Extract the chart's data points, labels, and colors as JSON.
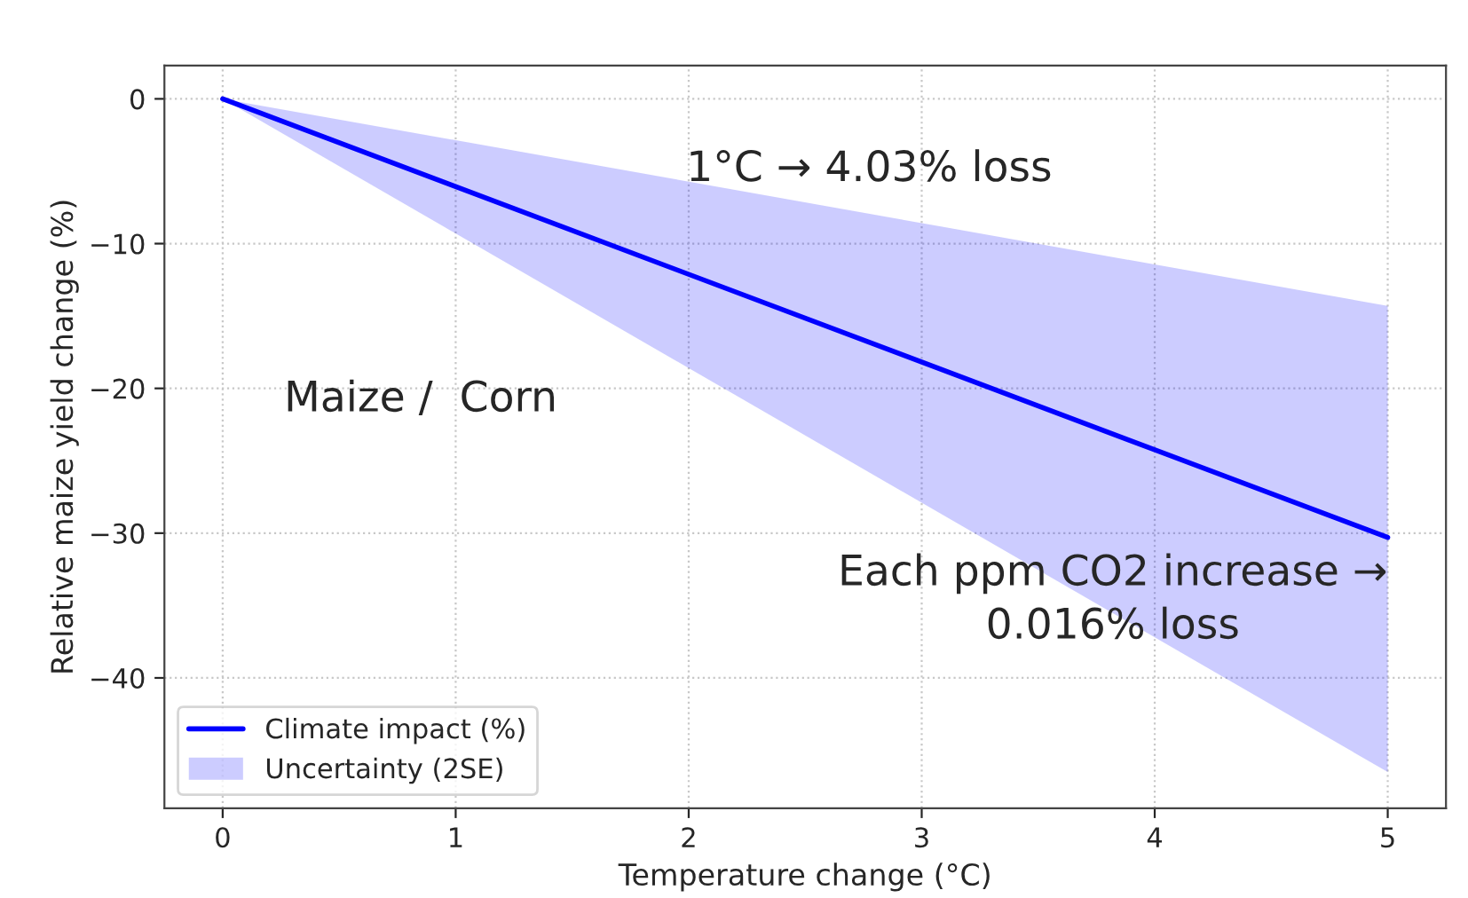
{
  "chart_data": {
    "type": "line",
    "xlabel": "Temperature change (°C)",
    "ylabel": "Relative maize yield change (%)",
    "x": [
      0,
      5
    ],
    "series": [
      {
        "name": "Climate impact (%)",
        "color": "#0000ff",
        "values": [
          0,
          -30.3
        ],
        "lower": [
          0,
          -46.5
        ],
        "upper": [
          0,
          -14.3
        ]
      }
    ],
    "xlim": [
      -0.25,
      5.25
    ],
    "xticks": [
      0,
      1,
      2,
      3,
      4,
      5
    ],
    "ylim": [
      -49,
      2.3
    ],
    "yticks": [
      {
        "value": -40,
        "label": "−40"
      },
      {
        "value": -30,
        "label": "−30"
      },
      {
        "value": -20,
        "label": "−20"
      },
      {
        "value": -10,
        "label": "−10"
      },
      0
    ],
    "grid": true,
    "legend": "bottom left",
    "annotations": [
      "1°C → 4.03% loss",
      "Maize /  Corn",
      "Each ppm CO2 increase →\n0.016% loss",
      "Uncertainty (2SE)"
    ]
  }
}
